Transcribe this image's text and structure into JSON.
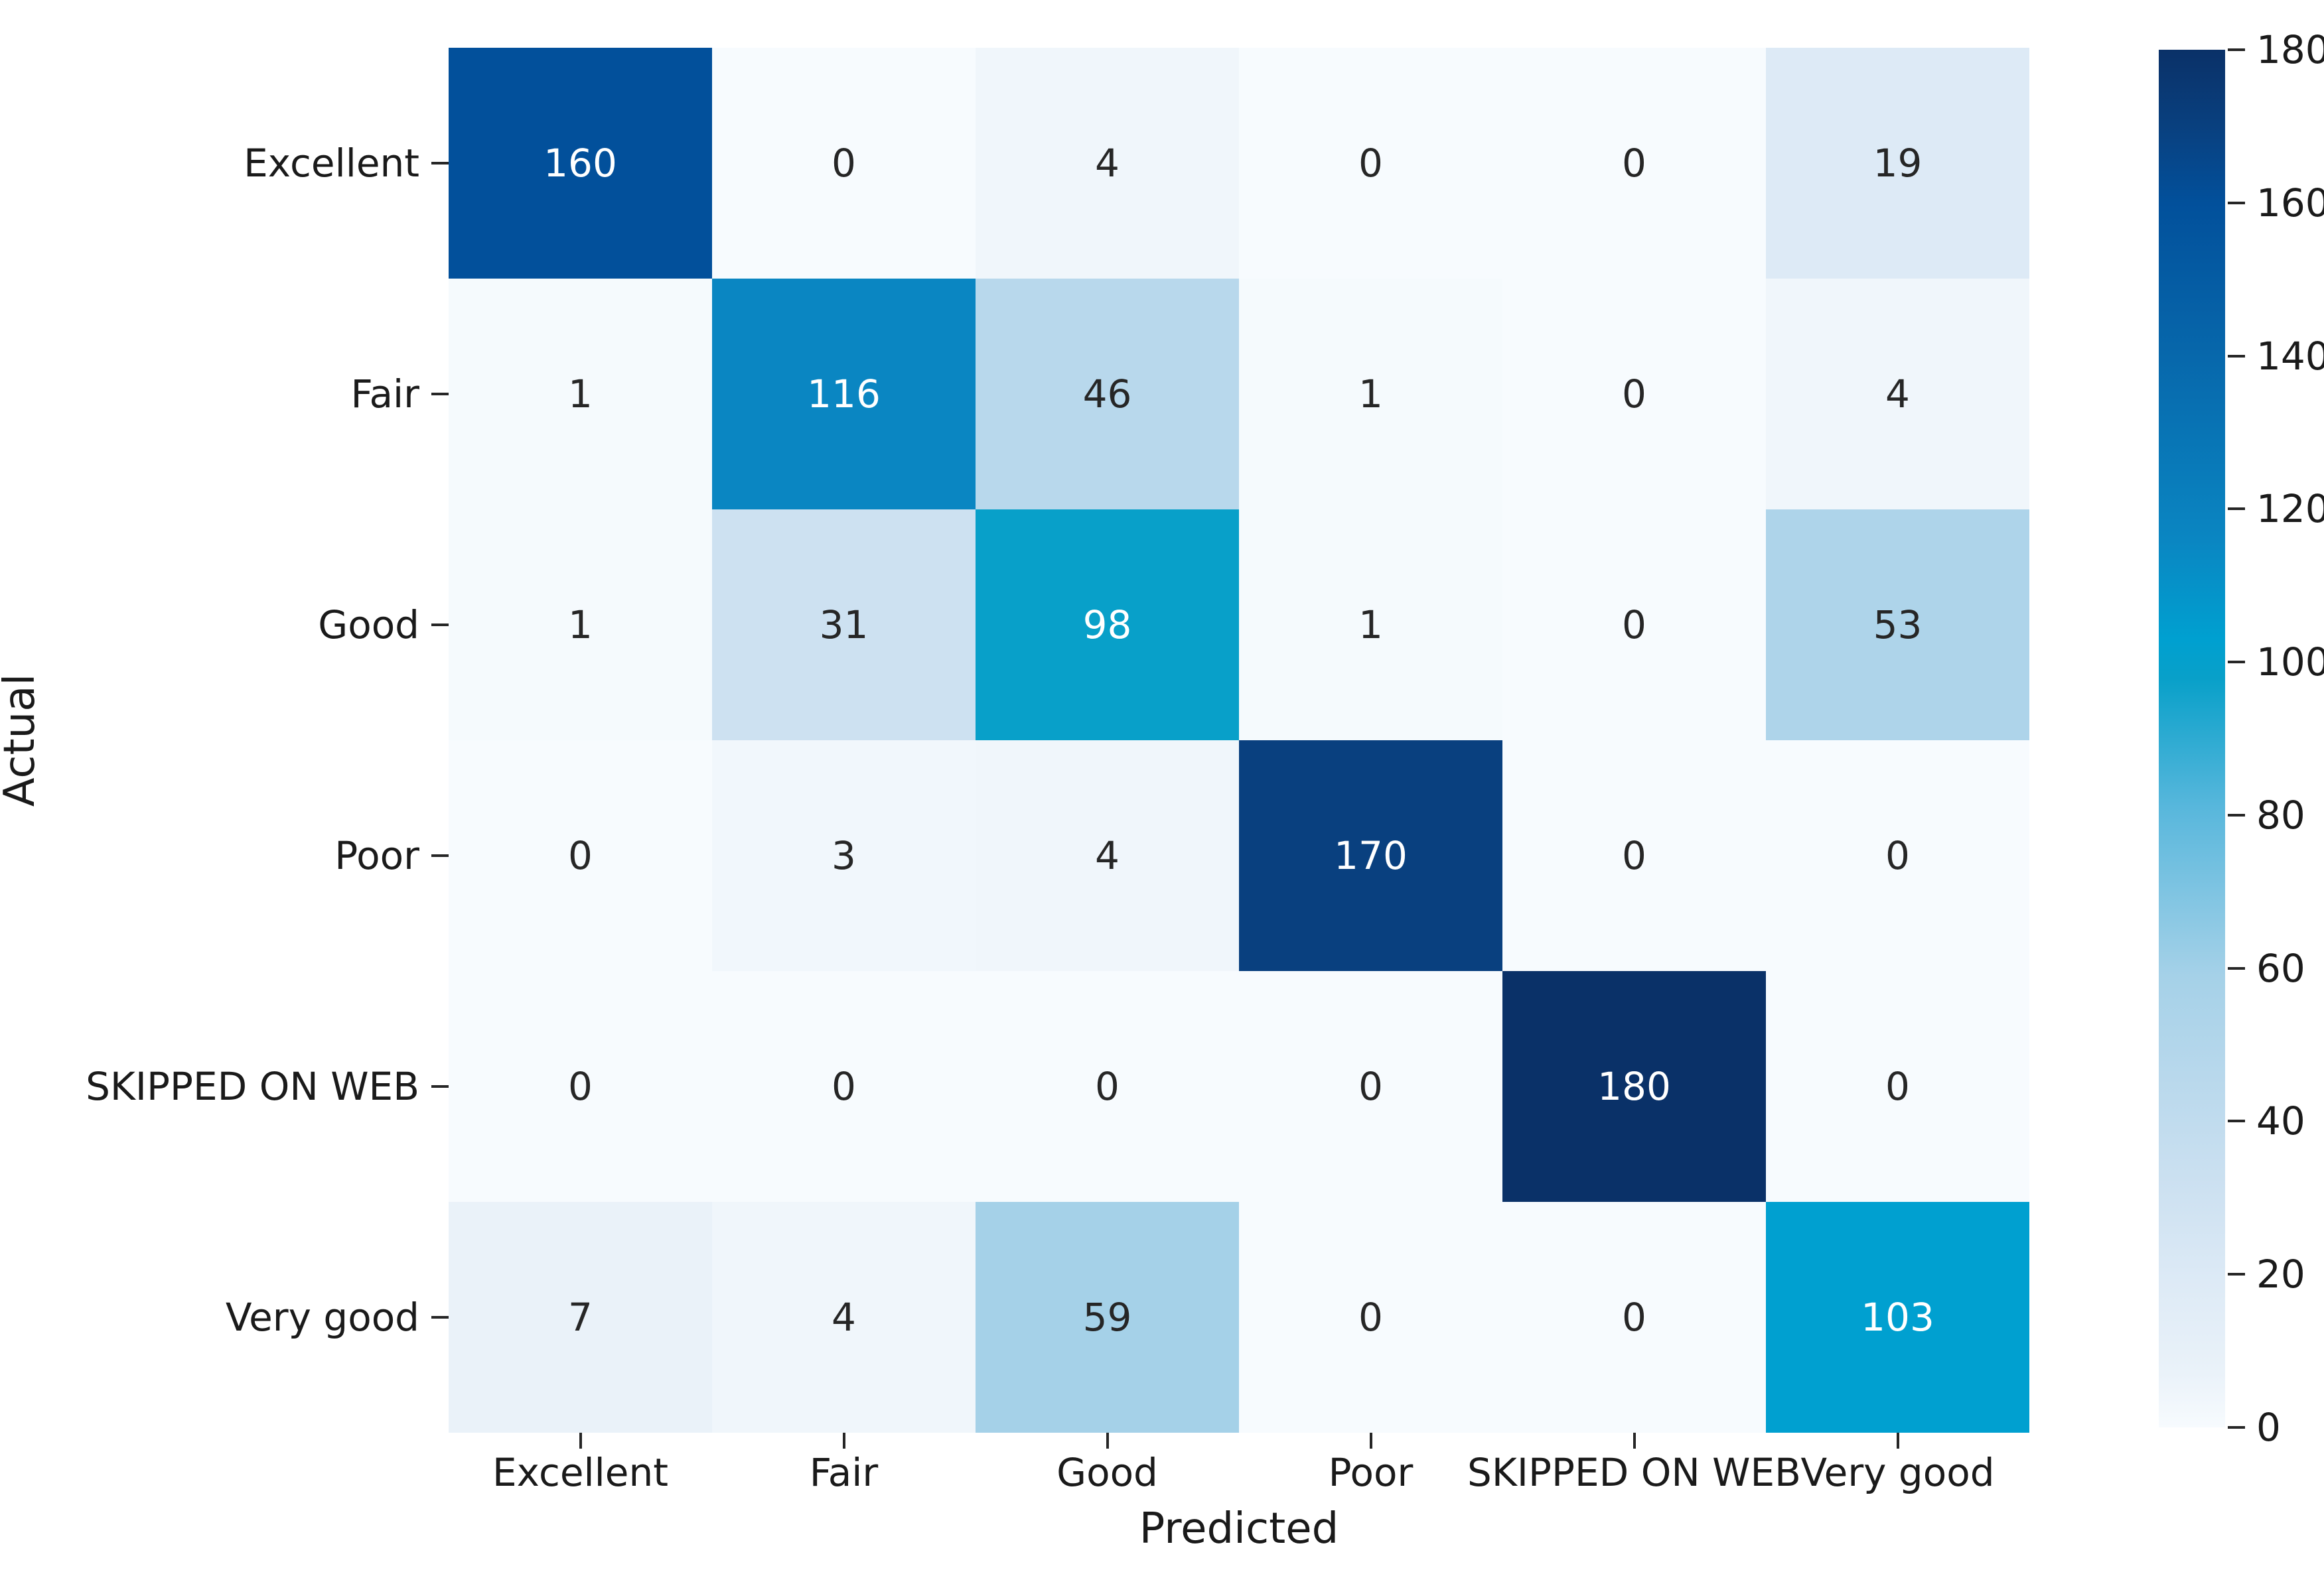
{
  "chart_data": {
    "type": "heatmap",
    "title": "",
    "xlabel": "Predicted",
    "ylabel": "Actual",
    "x_categories": [
      "Excellent",
      "Fair",
      "Good",
      "Poor",
      "SKIPPED ON WEB",
      "Very good"
    ],
    "y_categories": [
      "Excellent",
      "Fair",
      "Good",
      "Poor",
      "SKIPPED ON WEB",
      "Very good"
    ],
    "matrix": [
      [
        160,
        0,
        4,
        0,
        0,
        19
      ],
      [
        1,
        116,
        46,
        1,
        0,
        4
      ],
      [
        1,
        31,
        98,
        1,
        0,
        53
      ],
      [
        0,
        3,
        4,
        170,
        0,
        0
      ],
      [
        0,
        0,
        0,
        0,
        180,
        0
      ],
      [
        7,
        4,
        59,
        0,
        0,
        103
      ]
    ],
    "value_min": 0,
    "value_max": 180,
    "colorbar_ticks": [
      0,
      20,
      40,
      60,
      80,
      100,
      120,
      140,
      160,
      180
    ],
    "colormap_stops": [
      {
        "t": 0.0,
        "color": "#f7fbfe"
      },
      {
        "t": 0.039,
        "color": "#eaf2f9"
      },
      {
        "t": 0.106,
        "color": "#ddeaf6"
      },
      {
        "t": 0.172,
        "color": "#cde1f1"
      },
      {
        "t": 0.256,
        "color": "#b8d8ec"
      },
      {
        "t": 0.328,
        "color": "#a5d1e8"
      },
      {
        "t": 0.45,
        "color": "#58b7dc"
      },
      {
        "t": 0.544,
        "color": "#08a0c9"
      },
      {
        "t": 0.572,
        "color": "#00a0d0"
      },
      {
        "t": 0.644,
        "color": "#0a86c2"
      },
      {
        "t": 0.78,
        "color": "#0767ab"
      },
      {
        "t": 0.889,
        "color": "#02509b"
      },
      {
        "t": 0.944,
        "color": "#09407f"
      },
      {
        "t": 1.0,
        "color": "#0a3168"
      }
    ],
    "annotation_color_light_cells": "#262626",
    "annotation_color_dark_cells": "#ffffff",
    "white_text_threshold": 0.5,
    "grid_on": false,
    "legend_position": "right-colorbar"
  }
}
